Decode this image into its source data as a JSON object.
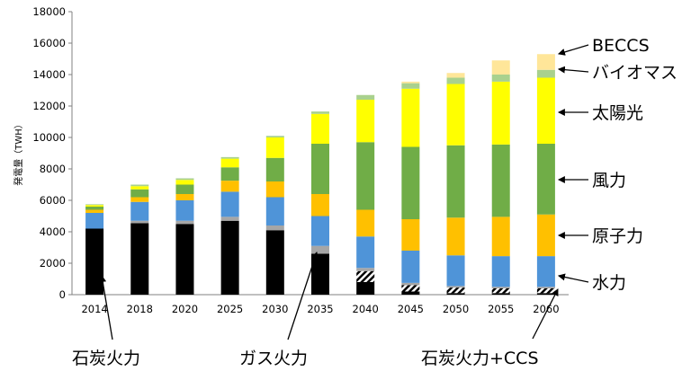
{
  "chart_data": {
    "type": "bar",
    "stacked": true,
    "ylabel": "発電量（TWH）",
    "ylim": [
      0,
      18000
    ],
    "yticks": [
      "0",
      "2000",
      "4000",
      "6000",
      "8000",
      "10000",
      "12000",
      "14000",
      "16000",
      "18000"
    ],
    "categories": [
      "2014",
      "2018",
      "2020",
      "2025",
      "2030",
      "2035",
      "2040",
      "2045",
      "2050",
      "2055",
      "2060"
    ],
    "series": [
      {
        "name": "石炭火力",
        "color": "#000000",
        "values": [
          4200,
          4550,
          4500,
          4700,
          4100,
          2600,
          800,
          200,
          100,
          100,
          100
        ]
      },
      {
        "name": "石炭火力+CCS",
        "color": "#ffffff",
        "pattern": "hatch",
        "values": [
          0,
          0,
          0,
          0,
          0,
          0,
          700,
          400,
          350,
          300,
          300
        ]
      },
      {
        "name": "ガス火力",
        "color": "#a6a6a6",
        "values": [
          0,
          150,
          200,
          250,
          300,
          500,
          200,
          150,
          100,
          100,
          100
        ]
      },
      {
        "name": "水力",
        "color": "#4f94d8",
        "values": [
          1000,
          1200,
          1300,
          1600,
          1800,
          1900,
          2000,
          2050,
          1950,
          1950,
          1950
        ]
      },
      {
        "name": "原子力",
        "color": "#ffc000",
        "values": [
          200,
          300,
          400,
          700,
          1000,
          1400,
          1700,
          2000,
          2400,
          2500,
          2650
        ]
      },
      {
        "name": "風力",
        "color": "#70ad47",
        "values": [
          200,
          500,
          600,
          850,
          1500,
          3200,
          4300,
          4600,
          4600,
          4600,
          4500
        ]
      },
      {
        "name": "太陽光",
        "color": "#ffff00",
        "values": [
          100,
          200,
          300,
          550,
          1300,
          1900,
          2700,
          3700,
          3900,
          4000,
          4200
        ]
      },
      {
        "name": "バイオマス",
        "color": "#a9d18e",
        "values": [
          50,
          100,
          100,
          100,
          100,
          150,
          300,
          350,
          400,
          450,
          500
        ]
      },
      {
        "name": "BECCS",
        "color": "#ffe699",
        "values": [
          0,
          0,
          0,
          0,
          0,
          0,
          0,
          100,
          300,
          900,
          1000
        ]
      }
    ],
    "annotations": {
      "right": [
        "BECCS",
        "バイオマス",
        "太陽光",
        "風力",
        "原子力",
        "水力"
      ],
      "bottom": [
        "石炭火力",
        "ガス火力",
        "石炭火力+CCS"
      ]
    },
    "legend": "none",
    "grid": false
  }
}
